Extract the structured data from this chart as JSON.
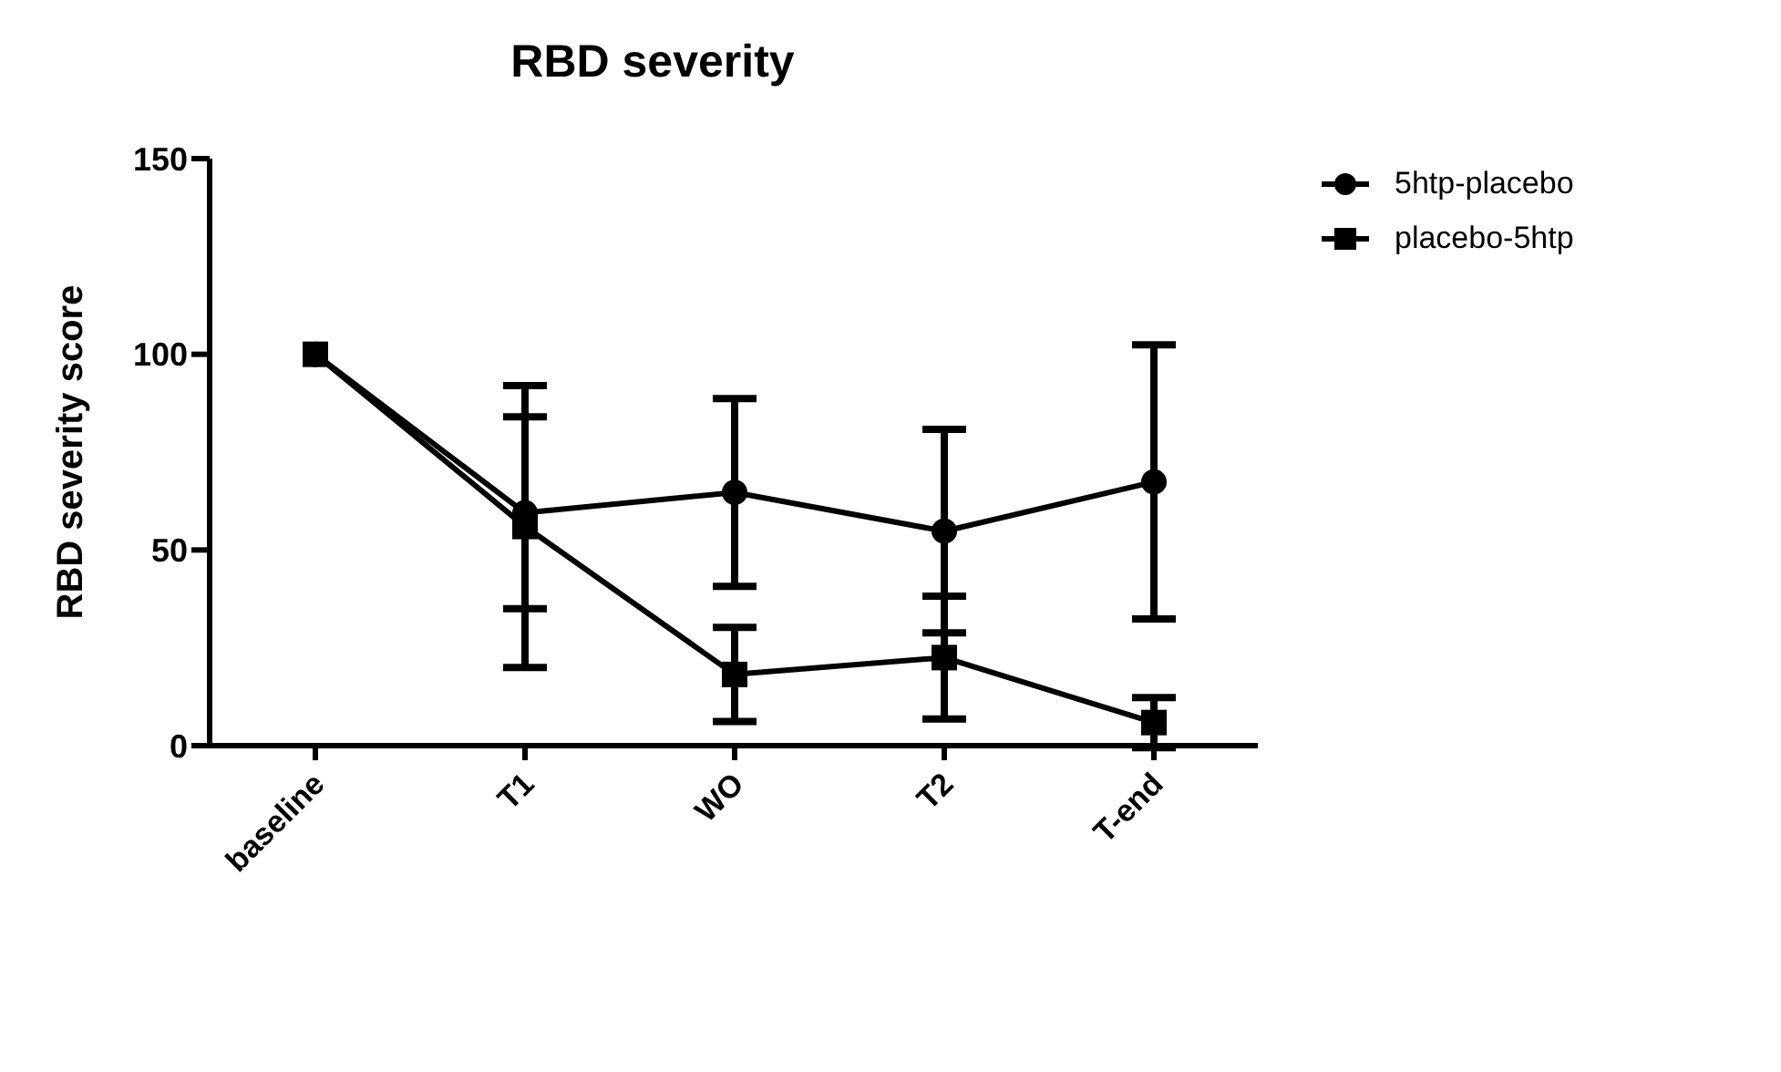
{
  "chart_data": {
    "type": "line",
    "title": "RBD severity",
    "ylabel": "RBD severity score",
    "categories": [
      "baseline",
      "T1",
      "WO",
      "T2",
      "T-end"
    ],
    "series": [
      {
        "name": "5htp-placebo",
        "color": "#000000",
        "marker": "circle",
        "values": [
          100,
          59.5,
          64.7,
          54.8,
          67.4
        ],
        "errors": [
          null,
          24.5,
          24,
          26,
          35
        ]
      },
      {
        "name": "placebo-5htp",
        "color": "#000000",
        "marker": "square",
        "values": [
          100,
          56,
          18.2,
          22.5,
          5.9
        ],
        "errors": [
          null,
          36,
          12,
          15.7,
          6.4
        ]
      }
    ],
    "ylim": [
      0,
      150
    ],
    "yticks": [
      0,
      50,
      100,
      150
    ],
    "grid": false,
    "legend": "top right",
    "line_style": "solid"
  }
}
